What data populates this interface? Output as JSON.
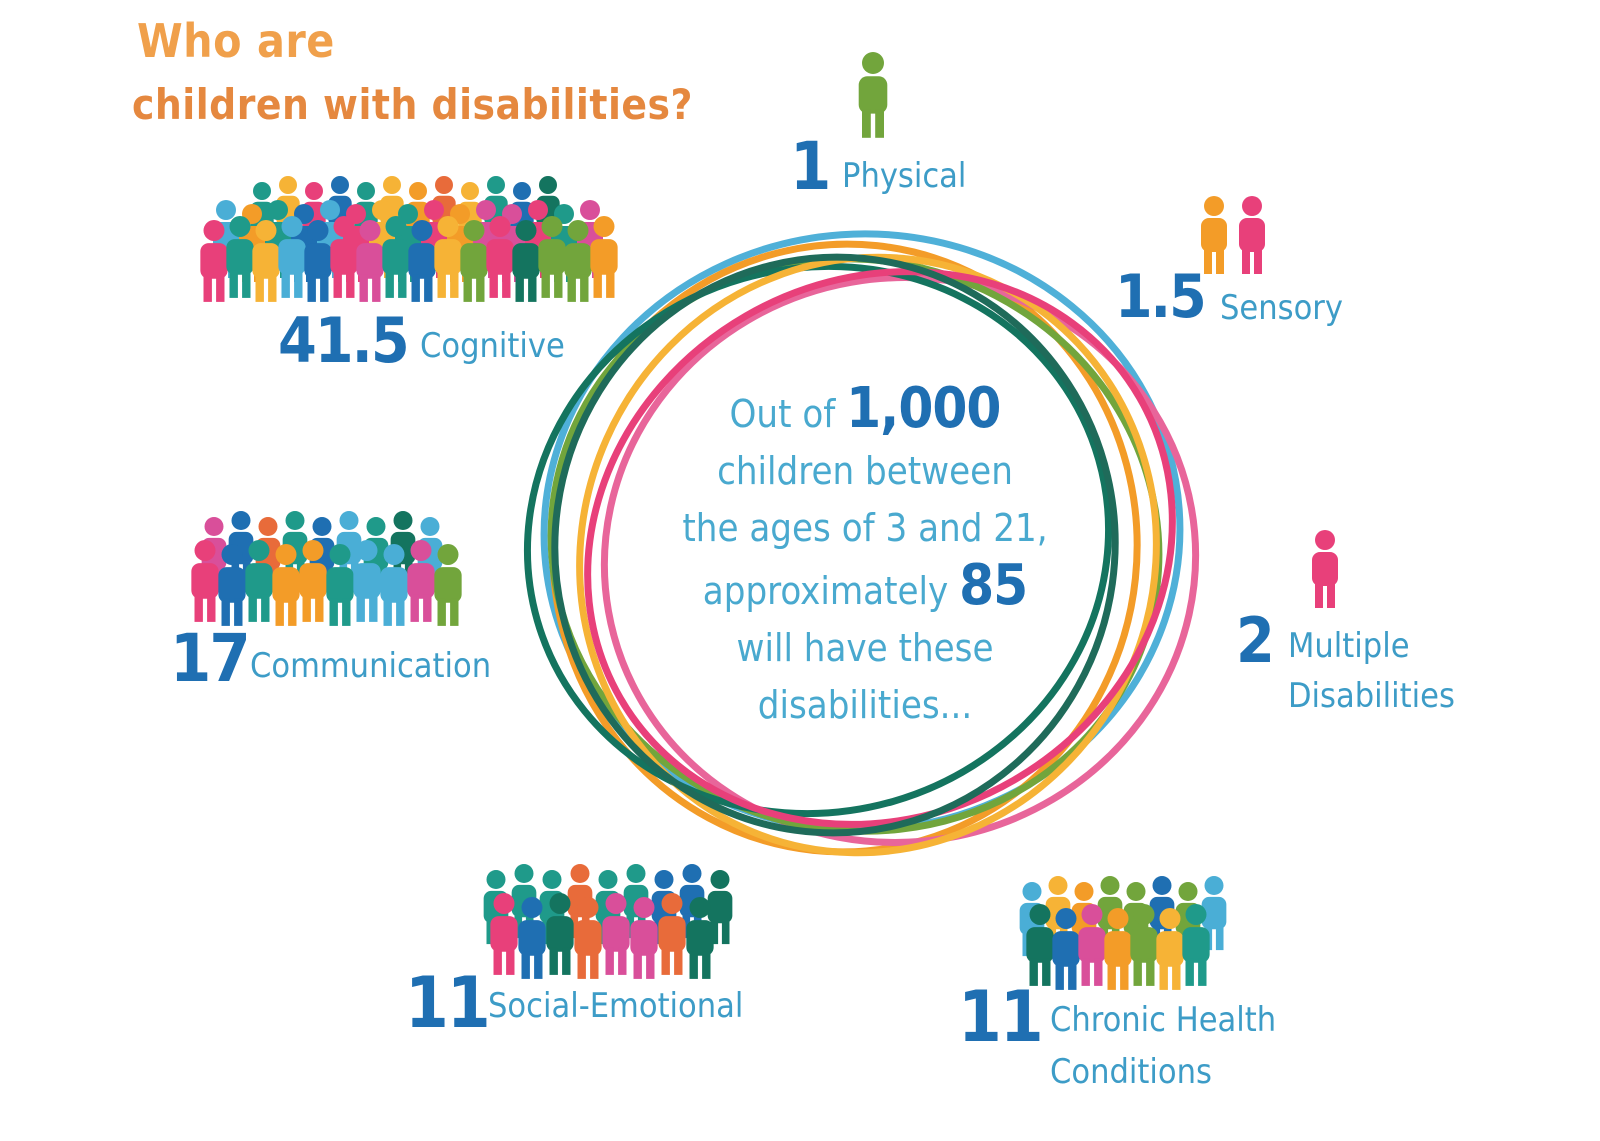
{
  "title": {
    "line1": "Who are",
    "line2": "children with disabilities?"
  },
  "center": {
    "prefix": "Out of",
    "total": "1,000",
    "line2": "children between",
    "line3": "the ages of 3 and 21,",
    "line4": "approximately",
    "count": "85",
    "line5": "will have these",
    "line6": "disabilities..."
  },
  "categories": [
    {
      "id": "physical",
      "value": "1",
      "label": "Physical"
    },
    {
      "id": "sensory",
      "value": "1.5",
      "label": "Sensory"
    },
    {
      "id": "cognitive",
      "value": "41.5",
      "label": "Cognitive"
    },
    {
      "id": "communication",
      "value": "17",
      "label": "Communication"
    },
    {
      "id": "multiple",
      "value": "2",
      "label_line1": "Multiple",
      "label_line2": "Disabilities"
    },
    {
      "id": "social",
      "value": "11",
      "label": "Social-Emotional"
    },
    {
      "id": "chronic",
      "value": "11",
      "label_line1": "Chronic Health",
      "label_line2": "Conditions"
    }
  ],
  "palette": [
    "#f39c28",
    "#e8407a",
    "#1f6fb2",
    "#72a53c",
    "#1f9a8a",
    "#f6b336",
    "#4aaed6",
    "#14745f",
    "#e86b3a",
    "#d94f9a"
  ],
  "ring_colors": [
    "#4fb0d8",
    "#f39c28",
    "#e8659a",
    "#72a53c",
    "#14745f",
    "#f6b336",
    "#e8407a",
    "#1f6b5a"
  ]
}
